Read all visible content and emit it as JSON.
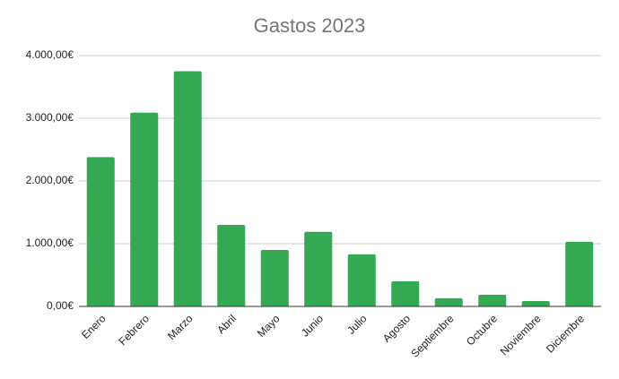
{
  "chart_data": {
    "type": "bar",
    "title": "Gastos 2023",
    "categories": [
      "Enero",
      "Febrero",
      "Marzo",
      "Abril",
      "Mayo",
      "Junio",
      "Julio",
      "Agosto",
      "Septiembre",
      "Octubre",
      "Noviembre",
      "Diciembre"
    ],
    "values": [
      2380,
      3090,
      3750,
      1300,
      900,
      1190,
      830,
      400,
      130,
      185,
      85,
      1030
    ],
    "color": "#34a853",
    "ylim": [
      0,
      4000
    ],
    "yticks": [
      {
        "value": 0,
        "label": "0,00€"
      },
      {
        "value": 1000,
        "label": "1.000,00€"
      },
      {
        "value": 2000,
        "label": "2.000,00€"
      },
      {
        "value": 3000,
        "label": "3.000,00€"
      },
      {
        "value": 4000,
        "label": "4.000,00€"
      }
    ],
    "grid": true
  }
}
